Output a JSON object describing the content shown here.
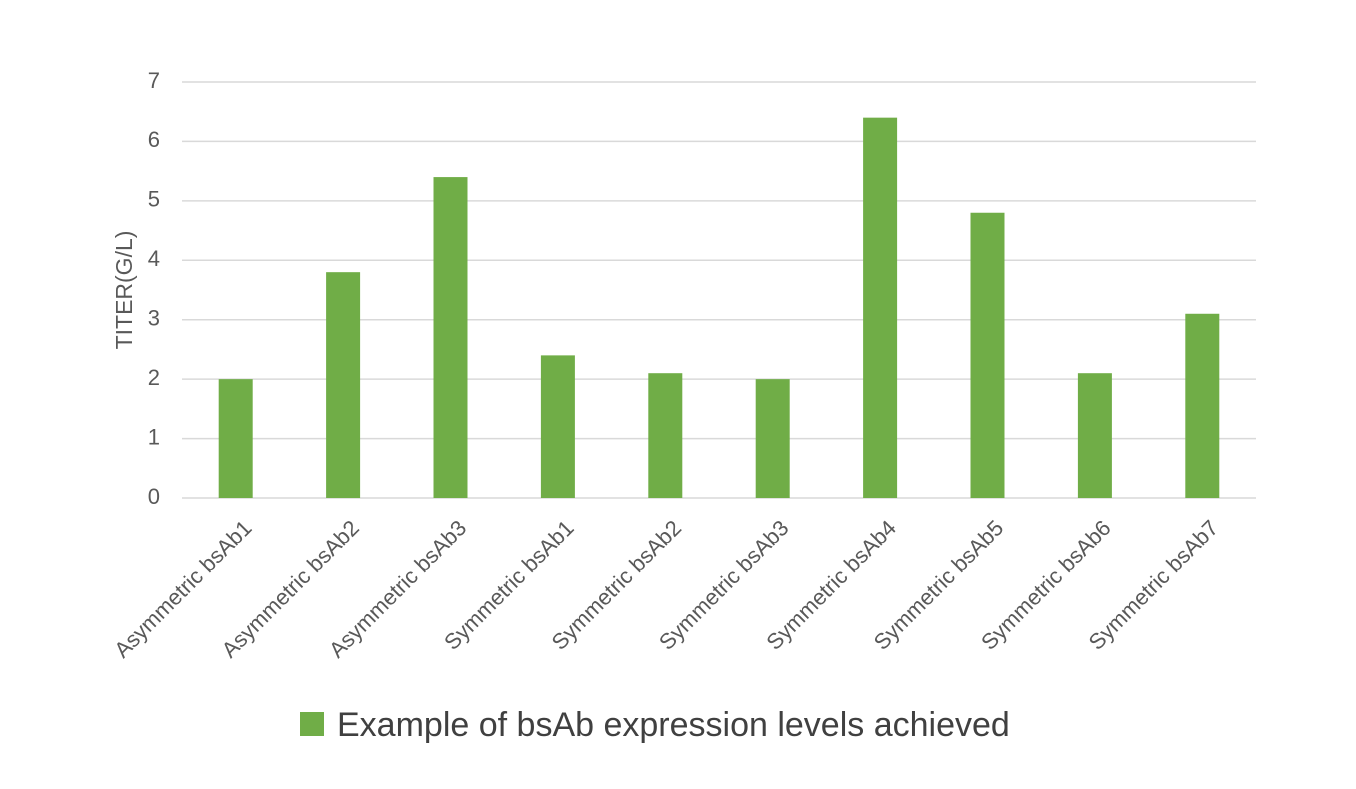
{
  "chart_data": {
    "type": "bar",
    "title": "",
    "xlabel": "",
    "ylabel": "TITER(G/L)",
    "categories": [
      "Asymmetric bsAb1",
      "Asymmetric bsAb2",
      "Asymmetric bsAb3",
      "Symmetric bsAb1",
      "Symmetric bsAb2",
      "Symmetric bsAb3",
      "Symmetric bsAb4",
      "Symmetric bsAb5",
      "Symmetric bsAb6",
      "Symmetric bsAb7"
    ],
    "series": [
      {
        "name": "Example of bsAb expression levels achieved",
        "color": "#70ad47",
        "values": [
          2.0,
          3.8,
          5.4,
          2.4,
          2.1,
          2.0,
          6.4,
          4.8,
          2.1,
          3.1
        ]
      }
    ],
    "ylim": [
      0,
      7
    ],
    "yticks": [
      0,
      1,
      2,
      3,
      4,
      5,
      6,
      7
    ],
    "grid": true,
    "legend_position": "bottom",
    "category_label_rotation": -45
  }
}
